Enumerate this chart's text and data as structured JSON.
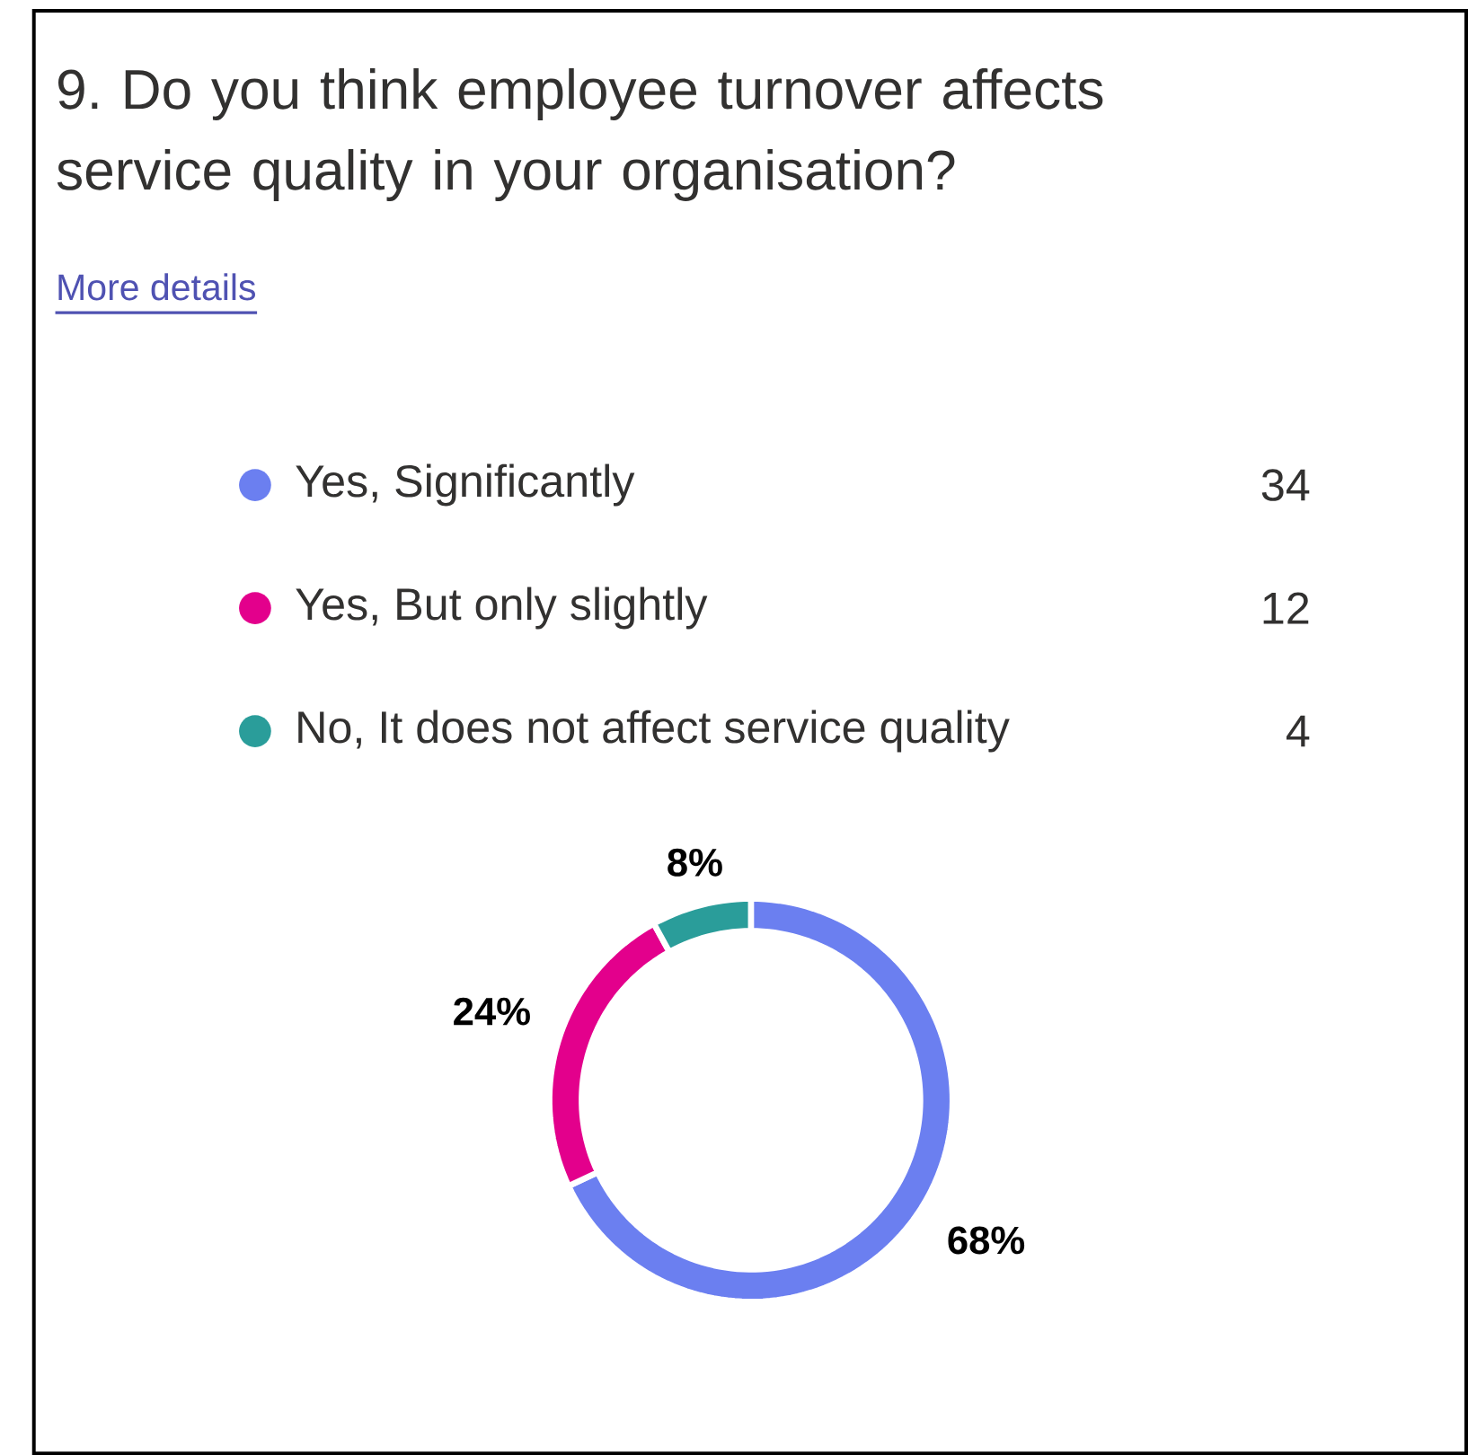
{
  "chart_data": {
    "type": "donut",
    "title": "9. Do you think employee turnover affects service quality in your organisation?",
    "annotations": [
      "More details",
      "34",
      "12",
      "4"
    ],
    "categories": [
      "Yes, Significantly",
      "Yes, But only slightly",
      "No, It does not affect service quality"
    ],
    "values": [
      68,
      24,
      8
    ],
    "colors": [
      "#6b7ff0",
      "#e3008c",
      "#2a9d9a"
    ],
    "value_labels": [
      "68%",
      "24%",
      "8%"
    ],
    "legend": "top"
  }
}
